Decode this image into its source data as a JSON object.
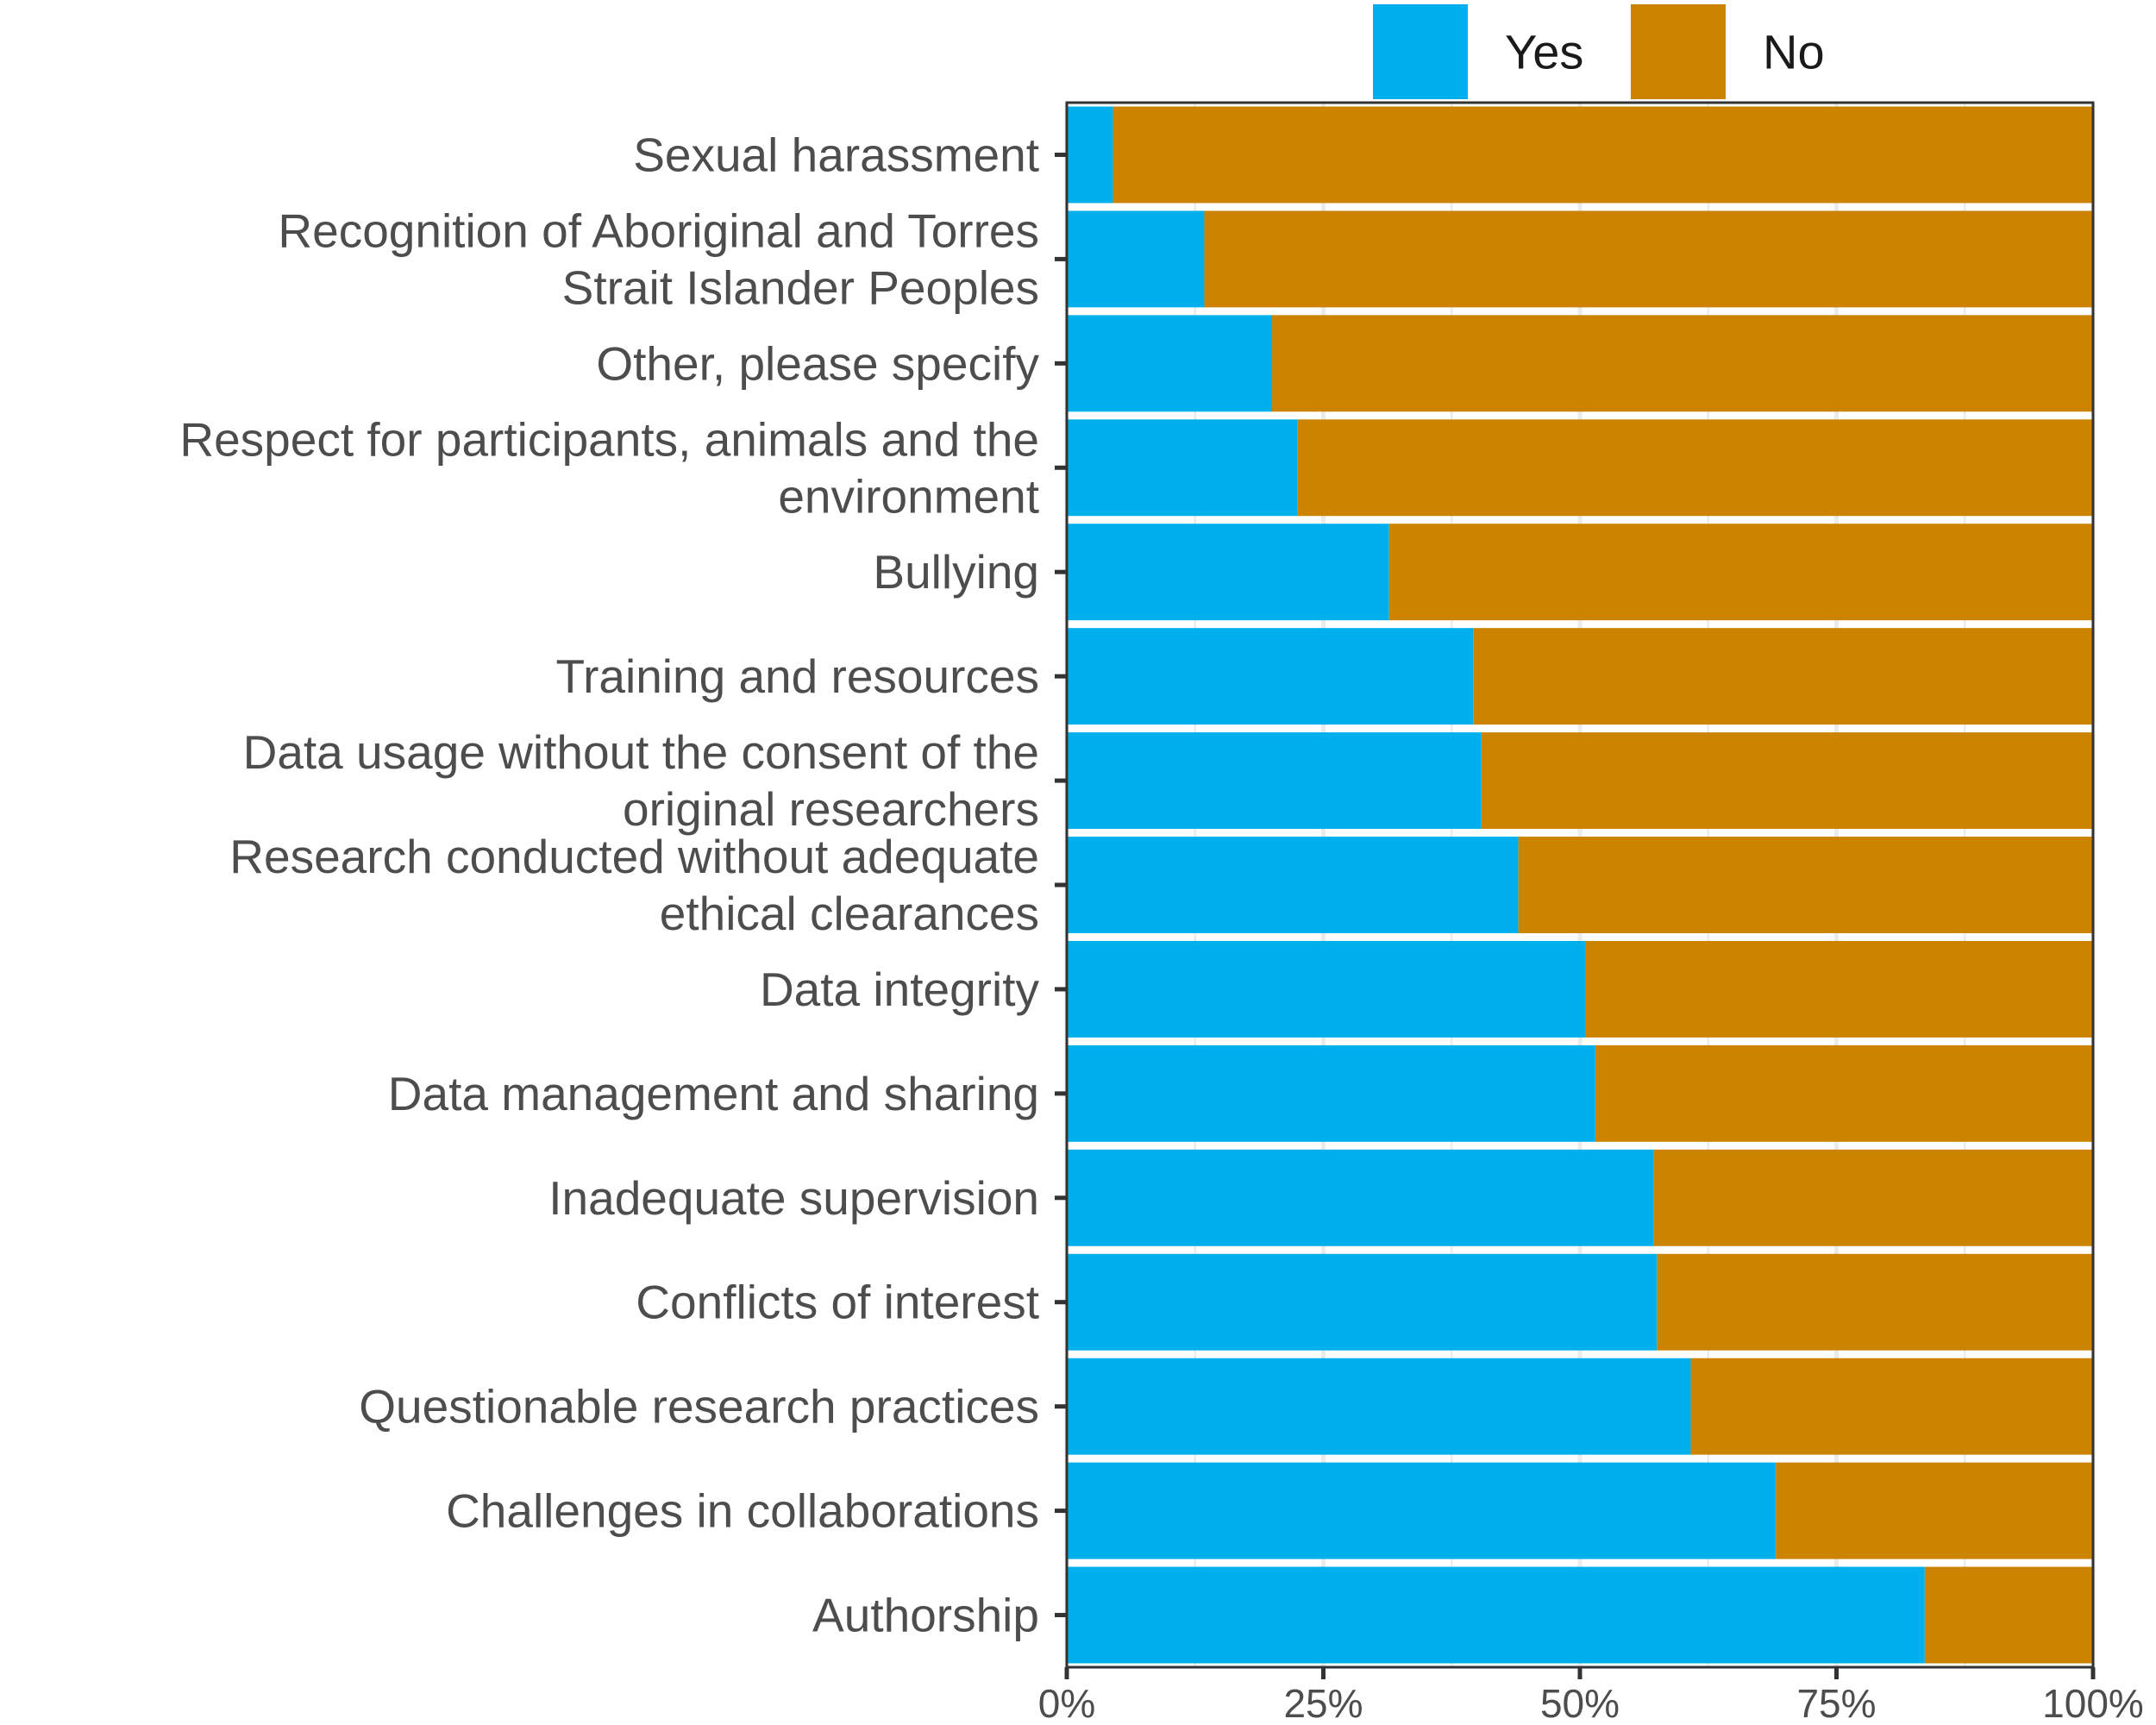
{
  "chart_data": {
    "type": "bar",
    "stacked": true,
    "orientation": "horizontal",
    "title": "",
    "xlabel": "",
    "ylabel": "",
    "xlim": [
      0,
      1
    ],
    "x_ticks": [
      "0%",
      "25%",
      "50%",
      "75%",
      "100%"
    ],
    "legend_position": "top",
    "categories": [
      [
        "Sexual harassment"
      ],
      [
        "Recognition of Aboriginal and Torres",
        "Strait Islander Peoples"
      ],
      [
        "Other, please specify"
      ],
      [
        "Respect for participants, animals and the",
        "environment"
      ],
      [
        "Bullying"
      ],
      [
        "Training and resources"
      ],
      [
        "Data usage without the consent of the",
        "original researchers"
      ],
      [
        "Research conducted without adequate",
        "ethical clearances"
      ],
      [
        "Data integrity"
      ],
      [
        "Data management and sharing"
      ],
      [
        "Inadequate supervision"
      ],
      [
        "Conflicts of interest"
      ],
      [
        "Questionable research practices"
      ],
      [
        "Challenges in collaborations"
      ],
      [
        "Authorship"
      ]
    ],
    "series": [
      {
        "name": "Yes",
        "color": "#00b0ec",
        "values": [
          0.045,
          0.134,
          0.2,
          0.225,
          0.314,
          0.396,
          0.404,
          0.44,
          0.505,
          0.515,
          0.572,
          0.575,
          0.608,
          0.691,
          0.836
        ]
      },
      {
        "name": "No",
        "color": "#cc8400",
        "values": [
          0.955,
          0.866,
          0.8,
          0.775,
          0.686,
          0.604,
          0.596,
          0.56,
          0.495,
          0.485,
          0.428,
          0.425,
          0.392,
          0.309,
          0.164
        ]
      }
    ]
  }
}
